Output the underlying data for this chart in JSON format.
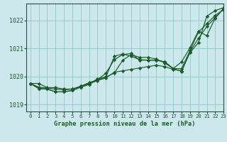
{
  "title": "Graphe pression niveau de la mer (hPa)",
  "bg_color": "#cce8ec",
  "grid_color": "#99cccc",
  "line_color": "#1a5c2a",
  "marker_color": "#1a5c2a",
  "xlim": [
    -0.5,
    23
  ],
  "ylim": [
    1018.75,
    1022.6
  ],
  "yticks": [
    1019,
    1020,
    1021,
    1022
  ],
  "xticks": [
    0,
    1,
    2,
    3,
    4,
    5,
    6,
    7,
    8,
    9,
    10,
    11,
    12,
    13,
    14,
    15,
    16,
    17,
    18,
    19,
    20,
    21,
    22,
    23
  ],
  "series": [
    [
      1019.75,
      1019.75,
      1019.6,
      1019.6,
      1019.55,
      1019.55,
      1019.65,
      1019.75,
      1019.85,
      1019.95,
      1020.15,
      1020.2,
      1020.25,
      1020.3,
      1020.35,
      1020.4,
      1020.35,
      1020.25,
      1020.2,
      1020.85,
      1021.2,
      1022.15,
      1022.35,
      1022.45
    ],
    [
      1019.75,
      1019.62,
      1019.58,
      1019.55,
      1019.52,
      1019.55,
      1019.65,
      1019.78,
      1019.88,
      1019.98,
      1020.72,
      1020.8,
      1020.72,
      1020.6,
      1020.58,
      1020.58,
      1020.52,
      1020.28,
      1020.18,
      1020.88,
      1021.35,
      1021.78,
      1022.1,
      1022.42
    ],
    [
      1019.75,
      1019.57,
      1019.55,
      1019.45,
      1019.45,
      1019.5,
      1019.62,
      1019.72,
      1019.88,
      1020.12,
      1020.6,
      1020.78,
      1020.82,
      1020.58,
      1020.58,
      1020.58,
      1020.52,
      1020.28,
      1020.52,
      1021.02,
      1021.62,
      1021.45,
      1022.08,
      1022.42
    ],
    [
      1019.75,
      1019.57,
      1019.55,
      1019.45,
      1019.45,
      1019.5,
      1019.62,
      1019.72,
      1019.92,
      1019.98,
      1020.12,
      1020.58,
      1020.78,
      1020.68,
      1020.68,
      1020.62,
      1020.48,
      1020.28,
      1020.28,
      1020.92,
      1021.58,
      1021.88,
      1022.18,
      1022.38
    ]
  ]
}
